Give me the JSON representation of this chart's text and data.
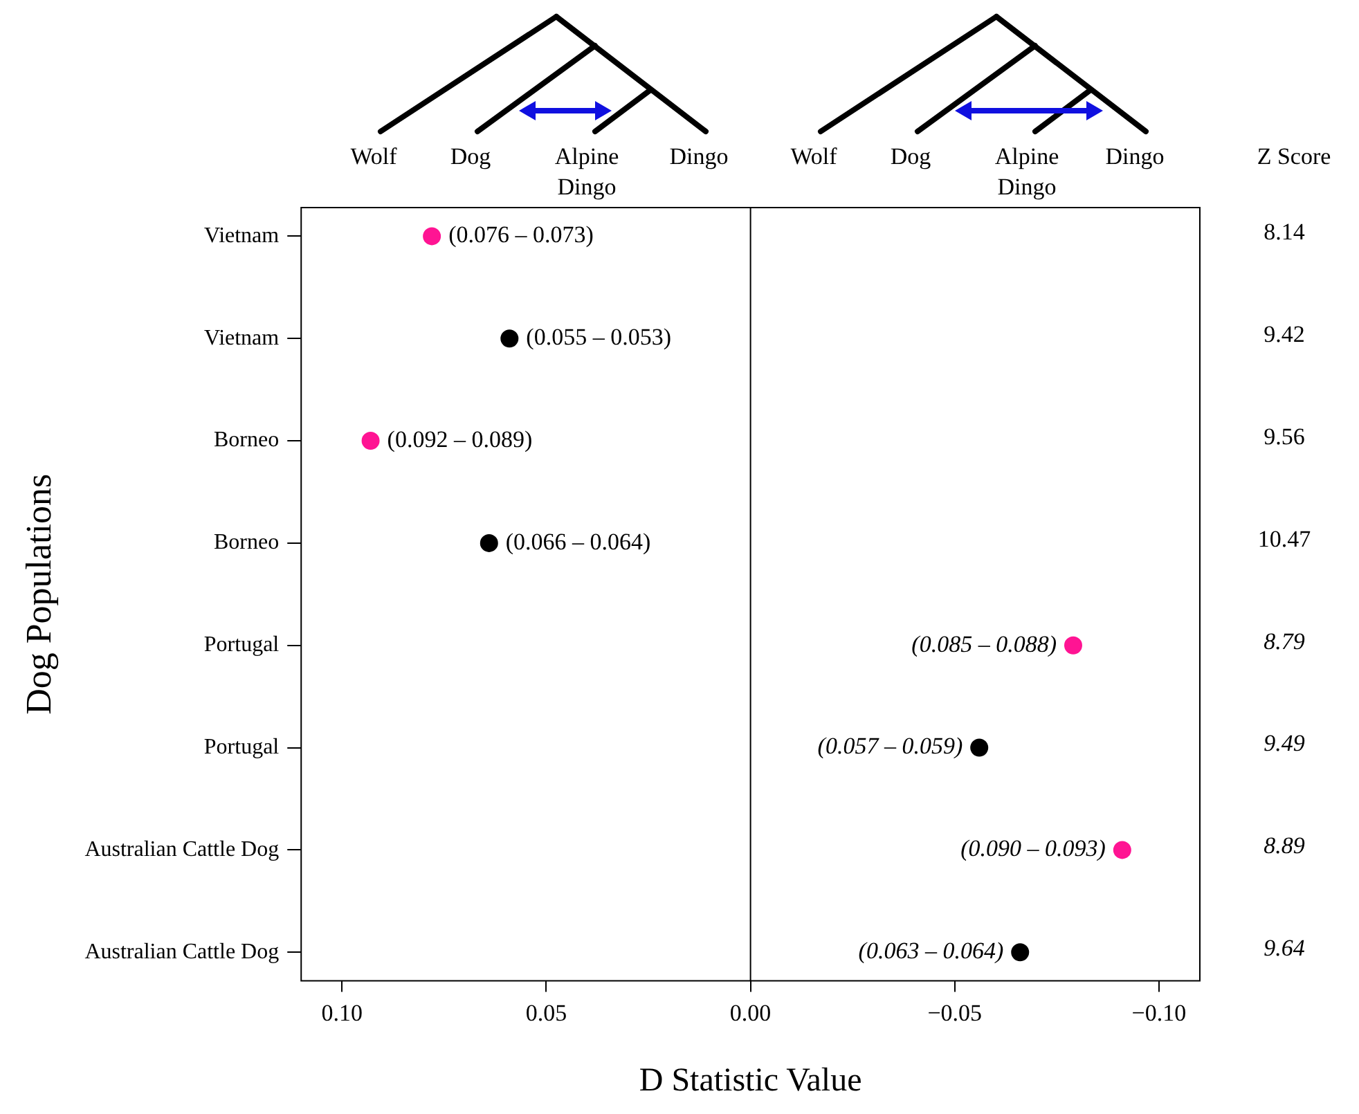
{
  "chart_data": {
    "type": "scatter",
    "orientation": "horizontal",
    "ylabel": "Dog Populations",
    "xlabel": "D Statistic Value",
    "categories": [
      "Vietnam",
      "Vietnam",
      "Borneo",
      "Borneo",
      "Portugal",
      "Portugal",
      "Australian Cattle Dog",
      "Australian Cattle Dog"
    ],
    "values": [
      0.078,
      0.059,
      0.093,
      0.064,
      -0.079,
      -0.056,
      -0.091,
      -0.066
    ],
    "colors": [
      "#ff1493",
      "#000000",
      "#ff1493",
      "#000000",
      "#ff1493",
      "#000000",
      "#ff1493",
      "#000000"
    ],
    "value_labels": [
      "(0.076 – 0.073)",
      "(0.055 – 0.053)",
      "(0.092 – 0.089)",
      "(0.066 – 0.064)",
      "(0.085 – 0.088)",
      "(0.057 – 0.059)",
      "(0.090 – 0.093)",
      "(0.063 – 0.064)"
    ],
    "xlim": [
      0.11,
      -0.11
    ],
    "xticks": [
      {
        "value": 0.1,
        "label": "0.10"
      },
      {
        "value": 0.05,
        "label": "0.05"
      },
      {
        "value": 0,
        "label": "0.00"
      },
      {
        "value": -0.05,
        "label": "−0.05"
      },
      {
        "value": -0.1,
        "label": "−0.10"
      }
    ],
    "ref_lines": [
      {
        "axis": "x",
        "value": 0
      }
    ],
    "marker": "circle",
    "annotations": [
      "Wolf",
      "Dog",
      "Alpine\nDingo",
      "Dingo",
      "Wolf",
      "Dog",
      "Alpine\nDingo",
      "Dingo",
      "Z Score",
      "8.14",
      "9.42",
      "9.56",
      "10.47",
      "8.79",
      "9.49",
      "8.89",
      "9.64"
    ]
  }
}
